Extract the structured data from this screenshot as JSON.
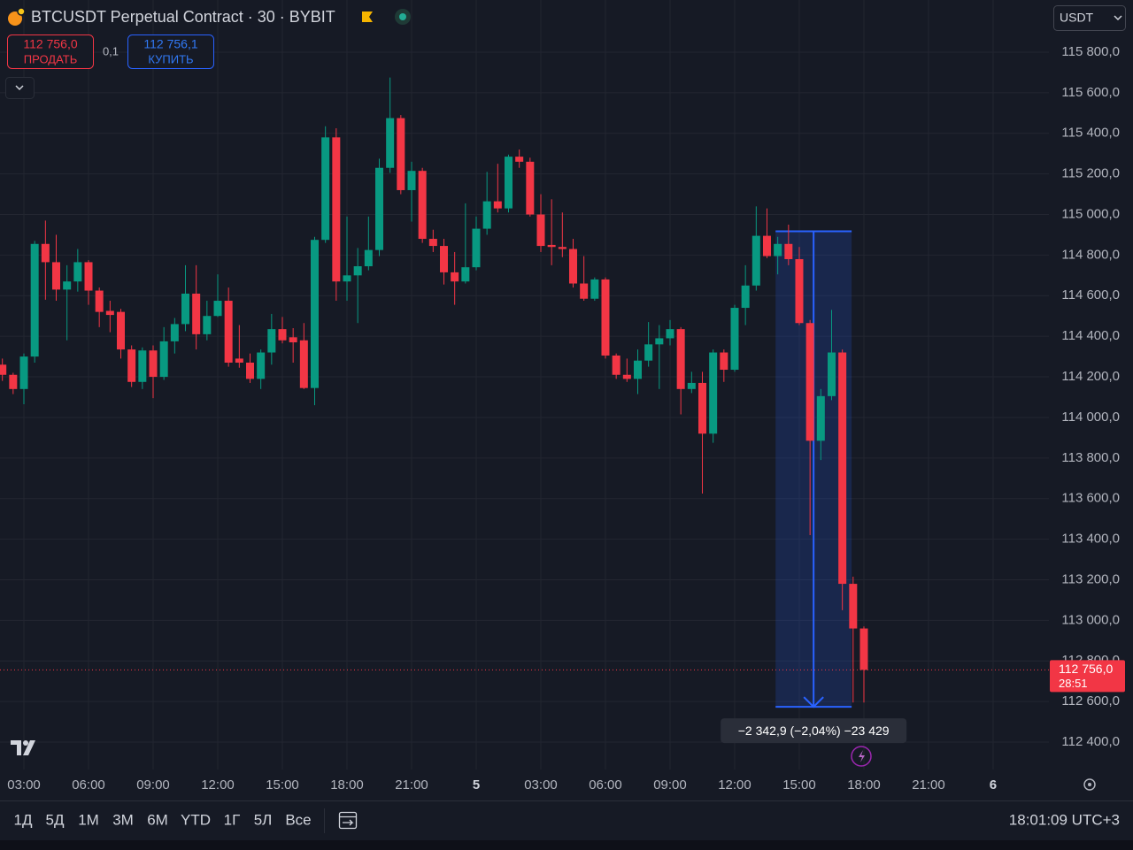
{
  "chart_data": {
    "type": "candlestick",
    "title": "BTCUSDT Perpetual Contract · 30 · BYBIT",
    "x": [
      2,
      2.5,
      3,
      3.5,
      4,
      4.5,
      5,
      5.5,
      6,
      6.5,
      7,
      7.5,
      8,
      8.5,
      9,
      9.5,
      10,
      10.5,
      11,
      11.5,
      12,
      12.5,
      13,
      13.5,
      14,
      14.5,
      15,
      15.5,
      16,
      16.5,
      17,
      17.5,
      18,
      18.5,
      19,
      19.5,
      20,
      20.5,
      21,
      21.5,
      22,
      22.5,
      23,
      23.5,
      24,
      24.5,
      25,
      25.5,
      26,
      26.5,
      27,
      27.5,
      28,
      28.5,
      29,
      29.5,
      30,
      30.5,
      31,
      31.5,
      32,
      32.5,
      33,
      33.5,
      34,
      34.5,
      35,
      35.5,
      36,
      36.5,
      37,
      37.5,
      38,
      38.5,
      39,
      39.5,
      40,
      40.5,
      41,
      41.5,
      42
    ],
    "open": [
      114260,
      114210,
      114140,
      114300,
      114855,
      114765,
      114630,
      114670,
      114765,
      114625,
      114525,
      114520,
      114335,
      114175,
      114330,
      114200,
      114375,
      114460,
      114610,
      114410,
      114500,
      114575,
      114290,
      114270,
      114190,
      114320,
      114435,
      114395,
      114380,
      114145,
      114875,
      115380,
      114670,
      114700,
      114745,
      114825,
      115230,
      115475,
      115120,
      115215,
      114880,
      114845,
      114715,
      114670,
      114740,
      114930,
      115065,
      115030,
      115285,
      115260,
      115000,
      114850,
      114840,
      114830,
      114660,
      114585,
      114680,
      114305,
      114210,
      114190,
      114280,
      114360,
      114390,
      114435,
      114140,
      114170,
      113920,
      114320,
      114235,
      114540,
      114650,
      114895,
      114795,
      114855,
      114780,
      114465,
      113885,
      114105,
      114320,
      113180,
      112960
    ],
    "high": [
      114290,
      114220,
      114315,
      114870,
      114970,
      114900,
      114750,
      114830,
      114775,
      114640,
      114575,
      114535,
      114355,
      114345,
      114355,
      114445,
      114490,
      114750,
      114750,
      114575,
      114705,
      114640,
      114455,
      114315,
      114335,
      114510,
      114495,
      114440,
      114465,
      114890,
      115435,
      115425,
      114990,
      114835,
      114990,
      115275,
      115675,
      115490,
      115260,
      115230,
      114925,
      114880,
      114815,
      115055,
      114990,
      115210,
      115250,
      115295,
      115320,
      115280,
      115100,
      115075,
      115010,
      114880,
      114795,
      114690,
      114690,
      114315,
      114290,
      114335,
      114470,
      114455,
      114480,
      114445,
      114225,
      114225,
      114335,
      114335,
      114555,
      114750,
      115040,
      115030,
      114890,
      114950,
      114840,
      114480,
      114140,
      114530,
      114335,
      113215,
      112970
    ],
    "low": [
      114180,
      114115,
      114065,
      114270,
      114580,
      114575,
      114380,
      114620,
      114555,
      114445,
      114420,
      114290,
      114150,
      114140,
      114095,
      114185,
      114315,
      114425,
      114335,
      114380,
      114495,
      114250,
      114245,
      114170,
      114140,
      114260,
      114365,
      114270,
      114140,
      114060,
      114860,
      114575,
      114575,
      114465,
      114725,
      114795,
      115205,
      115100,
      114965,
      114860,
      114815,
      114655,
      114555,
      114660,
      114725,
      114900,
      115010,
      115010,
      115230,
      114990,
      114815,
      114750,
      114790,
      114640,
      114575,
      114575,
      114290,
      114190,
      114175,
      114115,
      114250,
      114140,
      114355,
      114015,
      114120,
      113625,
      113875,
      114175,
      114225,
      114455,
      114625,
      114785,
      114705,
      114750,
      114455,
      113420,
      113790,
      114085,
      113050,
      112595,
      112595
    ],
    "close": [
      114210,
      114140,
      114300,
      114855,
      114765,
      114630,
      114670,
      114765,
      114625,
      114520,
      114505,
      114335,
      114175,
      114330,
      114200,
      114375,
      114460,
      114610,
      114410,
      114500,
      114575,
      114270,
      114270,
      114190,
      114320,
      114435,
      114380,
      114370,
      114145,
      114875,
      115380,
      114670,
      114700,
      114745,
      114825,
      115230,
      115475,
      115120,
      115215,
      114880,
      114845,
      114715,
      114670,
      114740,
      114930,
      115065,
      115030,
      115285,
      115260,
      115000,
      114845,
      114840,
      114830,
      114660,
      114585,
      114680,
      114305,
      114210,
      114190,
      114280,
      114360,
      114390,
      114435,
      114140,
      114170,
      113920,
      114320,
      114235,
      114540,
      114650,
      114895,
      114795,
      114855,
      114780,
      114465,
      113885,
      114105,
      114320,
      113180,
      112960,
      112756
    ],
    "up_color": "#089981",
    "down_color": "#f23645",
    "xlim": [
      1.89,
      50.59
    ],
    "ylim": [
      112265,
      116057
    ],
    "xticks": [
      {
        "value": 3,
        "label": "03:00"
      },
      {
        "value": 6,
        "label": "06:00"
      },
      {
        "value": 9,
        "label": "09:00"
      },
      {
        "value": 12,
        "label": "12:00"
      },
      {
        "value": 15,
        "label": "15:00"
      },
      {
        "value": 18,
        "label": "18:00"
      },
      {
        "value": 21,
        "label": "21:00"
      },
      {
        "value": 24,
        "label": "5"
      },
      {
        "value": 27,
        "label": "03:00"
      },
      {
        "value": 30,
        "label": "06:00"
      },
      {
        "value": 33,
        "label": "09:00"
      },
      {
        "value": 36,
        "label": "12:00"
      },
      {
        "value": 39,
        "label": "15:00"
      },
      {
        "value": 42,
        "label": "18:00"
      },
      {
        "value": 45,
        "label": "21:00"
      },
      {
        "value": 48,
        "label": "6"
      }
    ],
    "yticks": [
      {
        "value": 112400,
        "label": "112 400,0"
      },
      {
        "value": 112600,
        "label": "112 600,0"
      },
      {
        "value": 112800,
        "label": "112 800,0"
      },
      {
        "value": 113000,
        "label": "113 000,0"
      },
      {
        "value": 113200,
        "label": "113 200,0"
      },
      {
        "value": 113400,
        "label": "113 400,0"
      },
      {
        "value": 113600,
        "label": "113 600,0"
      },
      {
        "value": 113800,
        "label": "113 800,0"
      },
      {
        "value": 114000,
        "label": "114 000,0"
      },
      {
        "value": 114200,
        "label": "114 200,0"
      },
      {
        "value": 114400,
        "label": "114 400,0"
      },
      {
        "value": 114600,
        "label": "114 600,0"
      },
      {
        "value": 114800,
        "label": "114 800,0"
      },
      {
        "value": 115000,
        "label": "115 000,0"
      },
      {
        "value": 115200,
        "label": "115 200,0"
      },
      {
        "value": 115400,
        "label": "115 400,0"
      },
      {
        "value": 115600,
        "label": "115 600,0"
      },
      {
        "value": 115800,
        "label": "115 800,0"
      }
    ],
    "grid": true,
    "last_price": 112756,
    "last_price_label": "112 756,0",
    "countdown": "28:51",
    "measure": {
      "x_from": 37.9,
      "x_to": 41.43,
      "from": 114917,
      "to": 112574,
      "label": "−2 342,9 (−2,04%) −23 429"
    }
  },
  "toolbar": {
    "currency": "USDT",
    "sell_price": "112 756,0",
    "sell_label": "ПРОДАТЬ",
    "quantity": "0,1",
    "buy_price": "112 756,1",
    "buy_label": "КУПИТЬ",
    "ranges": [
      "1Д",
      "5Д",
      "1М",
      "3М",
      "6М",
      "YTD",
      "1Г",
      "5Л",
      "Все"
    ],
    "clock": "18:01:09 UTC+3"
  }
}
